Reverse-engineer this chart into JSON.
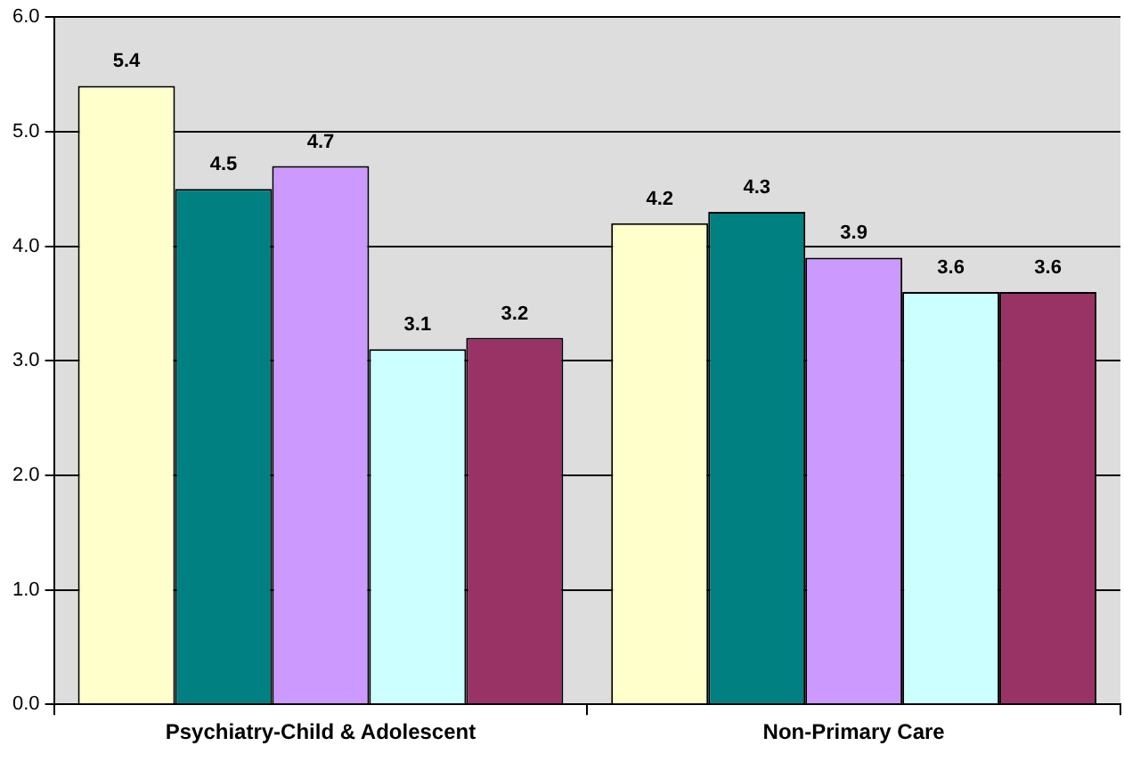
{
  "chart_data": {
    "type": "bar",
    "categories": [
      "Psychiatry-Child & Adolescent",
      "Non-Primary Care"
    ],
    "series": [
      {
        "color": "#ffffcc",
        "values": [
          5.4,
          4.2
        ]
      },
      {
        "color": "#008080",
        "values": [
          4.5,
          4.3
        ]
      },
      {
        "color": "#cc99ff",
        "values": [
          4.7,
          3.9
        ]
      },
      {
        "color": "#ccffff",
        "values": [
          3.1,
          3.6
        ]
      },
      {
        "color": "#993366",
        "values": [
          3.2,
          3.6
        ]
      }
    ],
    "ylim": [
      0,
      6
    ],
    "yticks": [
      {
        "value": 0,
        "label": "0.0"
      },
      {
        "value": 1,
        "label": "1.0"
      },
      {
        "value": 2,
        "label": "2.0"
      },
      {
        "value": 3,
        "label": "3.0"
      },
      {
        "value": 4,
        "label": "4.0"
      },
      {
        "value": 5,
        "label": "5.0"
      },
      {
        "value": 6,
        "label": "6.0"
      }
    ],
    "grid": "y",
    "data_labels": true
  }
}
